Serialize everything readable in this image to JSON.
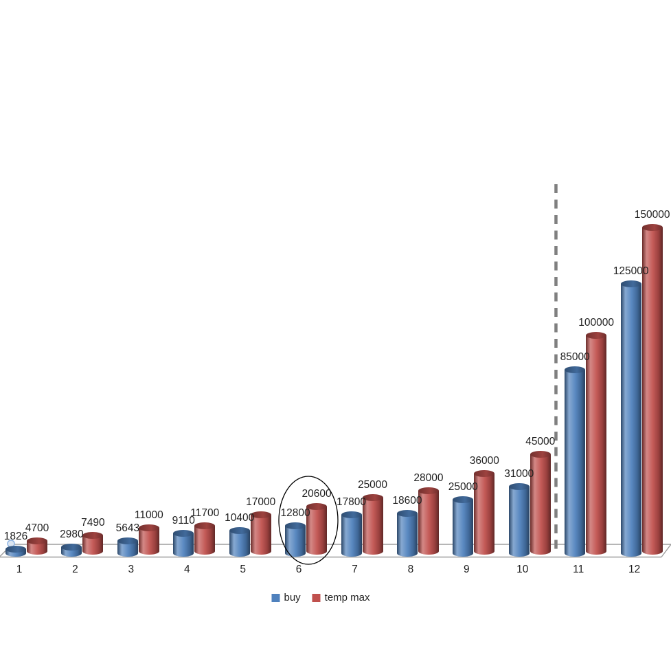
{
  "chart_data": {
    "type": "bar",
    "subtype": "3d-cylinder-column",
    "title": "",
    "categories": [
      "1",
      "2",
      "3",
      "4",
      "5",
      "6",
      "7",
      "8",
      "9",
      "10",
      "11",
      "12"
    ],
    "series": [
      {
        "name": "buy",
        "color": "#4f81bd",
        "values": [
          1826,
          2980,
          5643,
          9110,
          10400,
          12800,
          17800,
          18600,
          25000,
          31000,
          85000,
          125000
        ]
      },
      {
        "name": "temp max",
        "color": "#c0504d",
        "values": [
          4700,
          7490,
          11000,
          11700,
          17000,
          20600,
          25000,
          28000,
          36000,
          45000,
          100000,
          150000
        ]
      }
    ],
    "ylim": [
      0,
      150000
    ],
    "data_labels_shown": true,
    "gridlines": false,
    "legend_position": "bottom",
    "axis_color": "#9d9d9d",
    "label_color": "#1f1f1f",
    "annotations": [
      {
        "type": "dashed-vertical-divider",
        "between_categories": [
          "10",
          "11"
        ],
        "color": "#7f7f7f"
      },
      {
        "type": "ellipse-highlight",
        "category": "6",
        "color": "#000000"
      },
      {
        "type": "marker-pin",
        "category": "1",
        "color": "#8eb4e3"
      }
    ]
  }
}
